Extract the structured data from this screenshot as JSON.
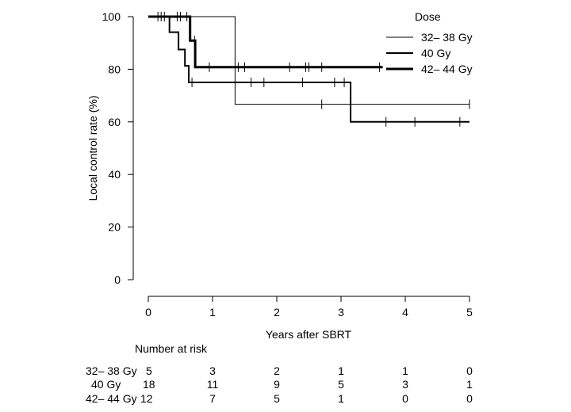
{
  "chart_data": {
    "type": "line",
    "subtype": "kaplan-meier",
    "xlabel": "Years after SBRT",
    "ylabel": "Local control rate (%)",
    "xlim": [
      0,
      5
    ],
    "ylim": [
      0,
      100
    ],
    "xticks": [
      0,
      1,
      2,
      3,
      4,
      5
    ],
    "yticks": [
      0,
      20,
      40,
      60,
      80,
      100
    ],
    "grid": false,
    "legend": {
      "title": "Dose",
      "position": "top-right"
    },
    "series": [
      {
        "name": "32– 38 Gy",
        "line_weight": "thin",
        "steps": [
          [
            0,
            100
          ],
          [
            1.35,
            100
          ],
          [
            1.35,
            66.7
          ],
          [
            5,
            66.7
          ]
        ],
        "censored": [
          [
            0.2,
            100
          ],
          [
            0.45,
            100
          ],
          [
            2.7,
            66.7
          ],
          [
            5,
            66.7
          ]
        ]
      },
      {
        "name": "40 Gy",
        "line_weight": "medium",
        "steps": [
          [
            0,
            100
          ],
          [
            0.33,
            100
          ],
          [
            0.33,
            94.1
          ],
          [
            0.47,
            94.1
          ],
          [
            0.47,
            87.5
          ],
          [
            0.57,
            87.5
          ],
          [
            0.57,
            81.3
          ],
          [
            0.63,
            81.3
          ],
          [
            0.63,
            75
          ],
          [
            3.15,
            75
          ],
          [
            3.15,
            60
          ],
          [
            5,
            60
          ]
        ],
        "censored": [
          [
            0.15,
            100
          ],
          [
            0.25,
            100
          ],
          [
            0.68,
            75
          ],
          [
            1.6,
            75
          ],
          [
            1.8,
            75
          ],
          [
            2.4,
            75
          ],
          [
            2.9,
            75
          ],
          [
            3.05,
            75
          ],
          [
            3.7,
            60
          ],
          [
            4.15,
            60
          ],
          [
            4.85,
            60
          ]
        ]
      },
      {
        "name": "42– 44 Gy",
        "line_weight": "thick",
        "steps": [
          [
            0,
            100
          ],
          [
            0.65,
            100
          ],
          [
            0.65,
            90.9
          ],
          [
            0.73,
            90.9
          ],
          [
            0.73,
            80.8
          ],
          [
            3.65,
            80.8
          ]
        ],
        "censored": [
          [
            0.5,
            100
          ],
          [
            0.6,
            100
          ],
          [
            0.72,
            90.9
          ],
          [
            0.95,
            80.8
          ],
          [
            1.4,
            80.8
          ],
          [
            1.5,
            80.8
          ],
          [
            2.2,
            80.8
          ],
          [
            2.45,
            80.8
          ],
          [
            2.5,
            80.8
          ],
          [
            2.7,
            80.8
          ],
          [
            3.6,
            80.8
          ]
        ]
      }
    ],
    "risk_table": {
      "title": "Number at risk",
      "rows": [
        {
          "label": "32– 38 Gy",
          "first": "5",
          "values": [
            "3",
            "2",
            "1",
            "1",
            "0"
          ]
        },
        {
          "label": "40 Gy",
          "first": "18",
          "values": [
            "11",
            "9",
            "5",
            "3",
            "1"
          ]
        },
        {
          "label": "42– 44 Gy",
          "first": "12",
          "values": [
            "7",
            "5",
            "1",
            "0",
            "0"
          ]
        }
      ]
    }
  }
}
